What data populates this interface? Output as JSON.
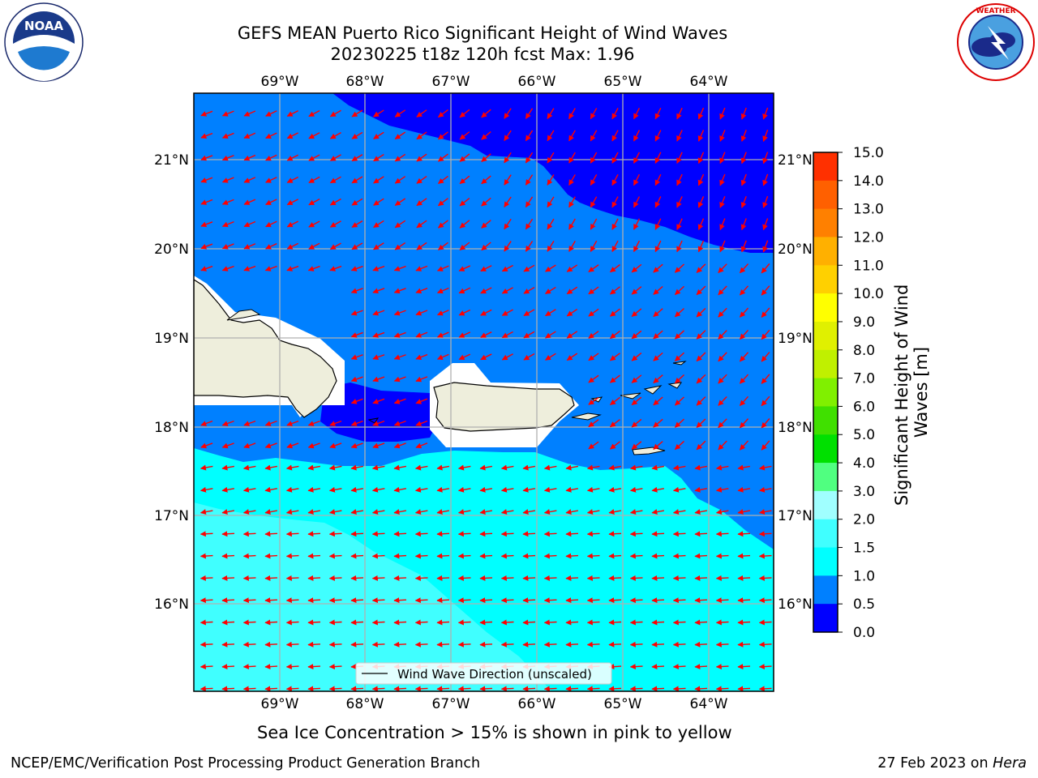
{
  "title_line1": "GEFS MEAN Puerto Rico Significant Height of Wind Waves",
  "title_line2": "20230225 t18z 120h fcst   Max: 1.96",
  "logos": {
    "left_text": "NOAA",
    "left_ring": "NATIONAL OCEANIC AND ATMOSPHERIC ADMINISTRATION · U.S. DEPARTMENT OF COMMERCE",
    "right_ring": "NATIONAL WEATHER SERVICE"
  },
  "map": {
    "lon_ticks": [
      "69°W",
      "68°W",
      "67°W",
      "66°W",
      "65°W",
      "64°W"
    ],
    "lat_ticks": [
      "21°N",
      "20°N",
      "19°N",
      "18°N",
      "17°N",
      "16°N"
    ],
    "legend_label": "Wind Wave Direction (unscaled)",
    "arrow_color": "#ff0000"
  },
  "colorbar": {
    "label": "Significant Height of Wind Waves [m]",
    "ticks": [
      "0.0",
      "0.5",
      "1.0",
      "1.5",
      "2.0",
      "3.0",
      "4.0",
      "5.0",
      "6.0",
      "7.0",
      "8.0",
      "9.0",
      "10.0",
      "11.0",
      "12.0",
      "13.0",
      "14.0",
      "15.0"
    ],
    "colors": [
      "#0000ff",
      "#0080ff",
      "#00ffff",
      "#40ffff",
      "#a0ffff",
      "#50ff80",
      "#00e000",
      "#40e000",
      "#80f000",
      "#c0f000",
      "#e0f000",
      "#ffff00",
      "#ffd000",
      "#ffb000",
      "#ff8000",
      "#ff6000",
      "#ff3000",
      "#ff0000"
    ]
  },
  "sea_ice_note": "Sea Ice Concentration > 15% is shown in pink to yellow",
  "footer": {
    "left": "NCEP/EMC/Verification Post Processing Product Generation Branch",
    "right_prefix": "27 Feb 2023 on ",
    "right_host": "Hera"
  }
}
